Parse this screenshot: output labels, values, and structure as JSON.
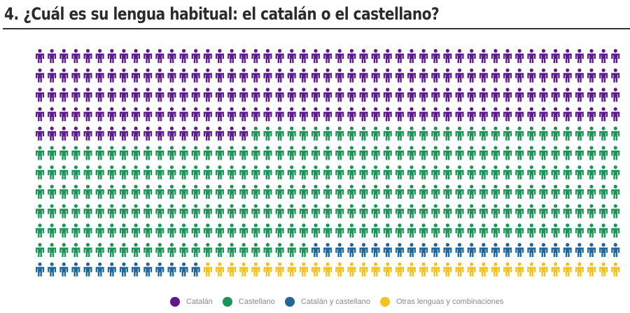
{
  "chart_data": {
    "type": "pictogram",
    "title": "4. ¿Cuál es su lengua habitual: el catalán o el castellano?",
    "columns": 49,
    "rows": 12,
    "series": [
      {
        "name": "Catalán",
        "count": 214,
        "color": "#5c1a8e"
      },
      {
        "name": "Castellano",
        "count": 299,
        "color": "#1d9457"
      },
      {
        "name": "Catalán y castellano",
        "count": 40,
        "color": "#1f669c"
      },
      {
        "name": "Otras lenguas y combinaciones",
        "count": 35,
        "color": "#f2c31a"
      }
    ],
    "legend_position": "bottom"
  }
}
